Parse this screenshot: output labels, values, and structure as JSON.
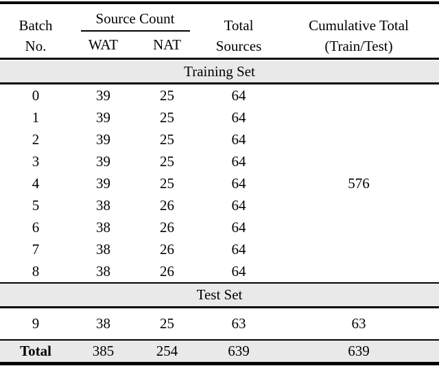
{
  "colors": {
    "band_background": "#e9e9e9",
    "rule": "#000000",
    "text": "#000000",
    "page_background": "#ffffff"
  },
  "table": {
    "header": {
      "batch_line1": "Batch",
      "batch_line2": "No.",
      "source_count_label": "Source Count",
      "wat_label": "WAT",
      "nat_label": "NAT",
      "total_line1": "Total",
      "total_line2": "Sources",
      "cumulative_line1": "Cumulative Total",
      "cumulative_line2": "(Train/Test)"
    },
    "training_section_label": "Training Set",
    "training_rows": [
      {
        "batch": "0",
        "wat": "39",
        "nat": "25",
        "total": "64",
        "cum": ""
      },
      {
        "batch": "1",
        "wat": "39",
        "nat": "25",
        "total": "64",
        "cum": ""
      },
      {
        "batch": "2",
        "wat": "39",
        "nat": "25",
        "total": "64",
        "cum": ""
      },
      {
        "batch": "3",
        "wat": "39",
        "nat": "25",
        "total": "64",
        "cum": ""
      },
      {
        "batch": "4",
        "wat": "39",
        "nat": "25",
        "total": "64",
        "cum": "576"
      },
      {
        "batch": "5",
        "wat": "38",
        "nat": "26",
        "total": "64",
        "cum": ""
      },
      {
        "batch": "6",
        "wat": "38",
        "nat": "26",
        "total": "64",
        "cum": ""
      },
      {
        "batch": "7",
        "wat": "38",
        "nat": "26",
        "total": "64",
        "cum": ""
      },
      {
        "batch": "8",
        "wat": "38",
        "nat": "26",
        "total": "64",
        "cum": ""
      }
    ],
    "test_section_label": "Test Set",
    "test_row": {
      "batch": "9",
      "wat": "38",
      "nat": "25",
      "total": "63",
      "cum": "63"
    },
    "total_row": {
      "label": "Total",
      "wat": "385",
      "nat": "254",
      "total": "639",
      "cum": "639"
    }
  }
}
